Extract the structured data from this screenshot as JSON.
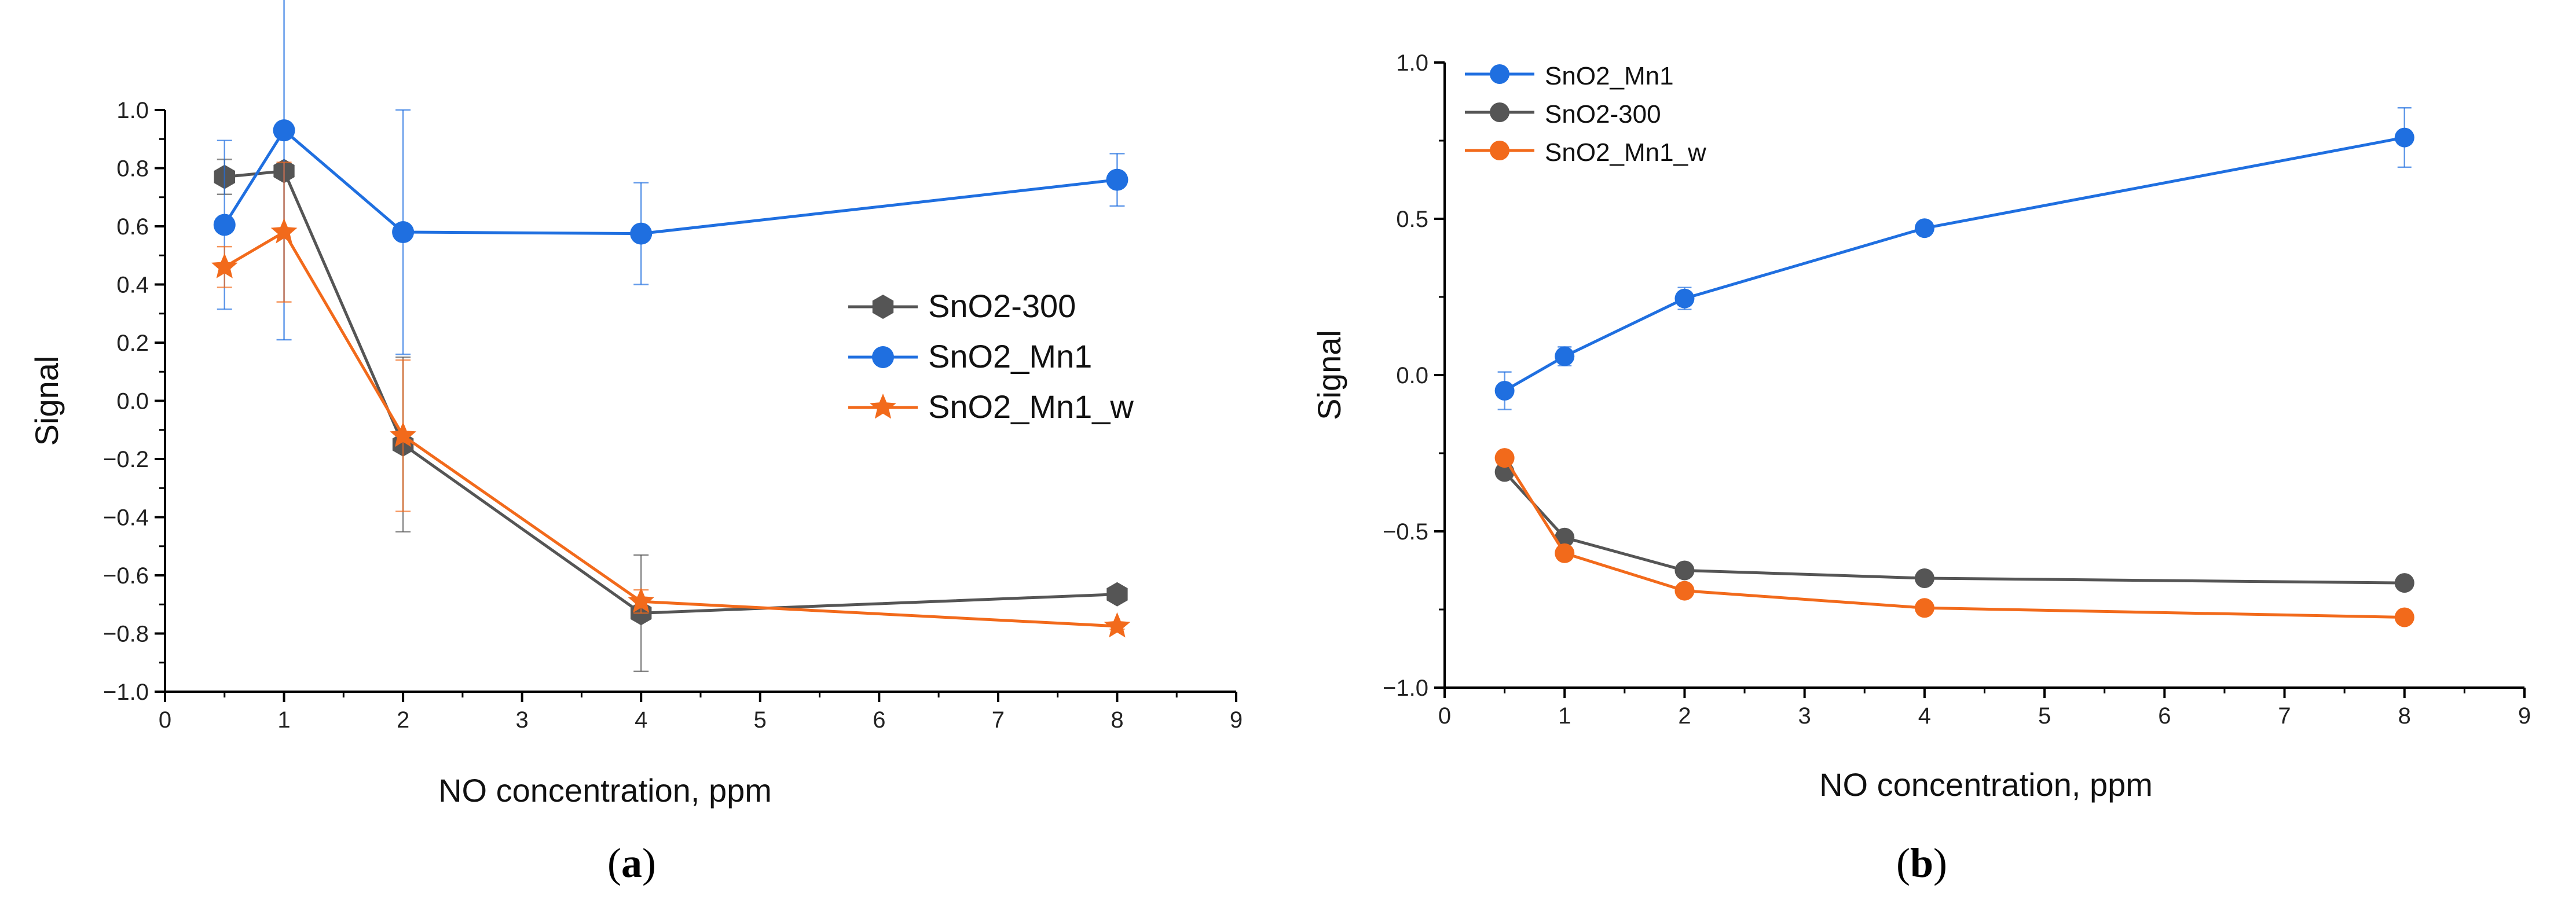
{
  "chart_data": [
    {
      "panel": "a",
      "caption_open": "(",
      "caption_letter": "a",
      "caption_close": ")",
      "type": "line",
      "xlabel": "NO concentration, ppm",
      "ylabel": "Signal",
      "xlim": [
        0,
        9
      ],
      "ylim": [
        -1.0,
        1.0
      ],
      "xticks": [
        0,
        1,
        2,
        3,
        4,
        5,
        6,
        7,
        8,
        9
      ],
      "yticks": [
        -1.0,
        -0.8,
        -0.6,
        -0.4,
        -0.2,
        0.0,
        0.2,
        0.4,
        0.6,
        0.8,
        1.0
      ],
      "ytick_labels": [
        "−1.0",
        "−0.8",
        "−0.6",
        "−0.4",
        "−0.2",
        "0.0",
        "0.2",
        "0.4",
        "0.6",
        "0.8",
        "1.0"
      ],
      "xtick_labels": [
        "0",
        "1",
        "2",
        "3",
        "4",
        "5",
        "6",
        "7",
        "8",
        "9"
      ],
      "legend_position": "center-right",
      "series": [
        {
          "name": "SnO2-300",
          "color": "#555555",
          "marker": "hexagon",
          "x": [
            0.5,
            1,
            2,
            4,
            8
          ],
          "y": [
            0.77,
            0.79,
            -0.15,
            -0.73,
            -0.665
          ],
          "err": [
            0.06,
            0.02,
            0.3,
            0.2,
            0.01
          ]
        },
        {
          "name": "SnO2_Mn1",
          "color": "#1f6fe0",
          "marker": "circle",
          "x": [
            0.5,
            1,
            2,
            4,
            8
          ],
          "y": [
            0.605,
            0.93,
            0.58,
            0.575,
            0.76
          ],
          "err": [
            0.29,
            0.72,
            0.42,
            0.175,
            0.09
          ]
        },
        {
          "name": "SnO2_Mn1_w",
          "color": "#f26a1b",
          "marker": "star",
          "x": [
            0.5,
            1,
            2,
            4,
            8
          ],
          "y": [
            0.46,
            0.58,
            -0.12,
            -0.69,
            -0.775
          ],
          "err": [
            0.07,
            0.24,
            0.26,
            0.04,
            0.01
          ]
        }
      ]
    },
    {
      "panel": "b",
      "caption_open": "(",
      "caption_letter": "b",
      "caption_close": ")",
      "type": "line",
      "xlabel": "NO concentration, ppm",
      "ylabel": "Signal",
      "xlim": [
        0,
        9
      ],
      "ylim": [
        -1.0,
        1.0
      ],
      "xticks": [
        0,
        1,
        2,
        3,
        4,
        5,
        6,
        7,
        8,
        9
      ],
      "yticks": [
        -1.0,
        -0.5,
        0.0,
        0.5,
        1.0
      ],
      "ytick_labels": [
        "−1.0",
        "−0.5",
        "0.0",
        "0.5",
        "1.0"
      ],
      "xtick_labels": [
        "0",
        "1",
        "2",
        "3",
        "4",
        "5",
        "6",
        "7",
        "8",
        "9"
      ],
      "legend_position": "top-left",
      "series": [
        {
          "name": "SnO2_Mn1",
          "color": "#1f6fe0",
          "marker": "circle",
          "x": [
            0.5,
            1,
            2,
            4,
            8
          ],
          "y": [
            -0.05,
            0.06,
            0.245,
            0.47,
            0.76
          ],
          "err": [
            0.06,
            0.03,
            0.035,
            0.015,
            0.095
          ]
        },
        {
          "name": "SnO2-300",
          "color": "#555555",
          "marker": "circle",
          "x": [
            0.5,
            1,
            2,
            4,
            8
          ],
          "y": [
            -0.31,
            -0.52,
            -0.625,
            -0.65,
            -0.665
          ],
          "err": [
            0,
            0,
            0,
            0,
            0
          ]
        },
        {
          "name": "SnO2_Mn1_w",
          "color": "#f26a1b",
          "marker": "circle",
          "x": [
            0.5,
            1,
            2,
            4,
            8
          ],
          "y": [
            -0.265,
            -0.57,
            -0.69,
            -0.745,
            -0.775
          ],
          "err": [
            0,
            0,
            0,
            0,
            0
          ]
        }
      ]
    }
  ]
}
